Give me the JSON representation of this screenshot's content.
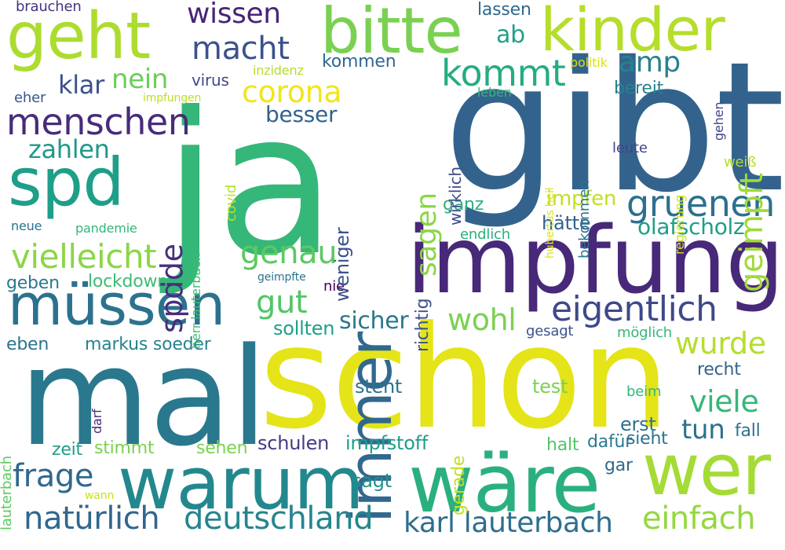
{
  "words": [
    {
      "id": "ja",
      "text": "ja",
      "color": "#35b779"
    },
    {
      "id": "gibt",
      "text": "gibt",
      "color": "#33638d"
    },
    {
      "id": "mal",
      "text": "mal",
      "color": "#2a788e"
    },
    {
      "id": "schon",
      "text": "schon",
      "color": "#e4e419"
    },
    {
      "id": "impfung",
      "text": "impfung",
      "color": "#482878"
    },
    {
      "id": "wäre",
      "text": "wäre",
      "color": "#2ab07f"
    },
    {
      "id": "warum",
      "text": "warum",
      "color": "#23888e"
    },
    {
      "id": "wer",
      "text": "wer",
      "color": "#a5db36"
    },
    {
      "id": "immer",
      "text": "immer",
      "color": "#31688e"
    },
    {
      "id": "kinder",
      "text": "kinder",
      "color": "#b5de2b"
    },
    {
      "id": "bitte",
      "text": "bitte",
      "color": "#7ad151"
    },
    {
      "id": "geht",
      "text": "geht",
      "color": "#addc30"
    },
    {
      "id": "spd",
      "text": "spd",
      "color": "#1f9e89"
    },
    {
      "id": "müssen",
      "text": "müssen",
      "color": "#2c728e"
    },
    {
      "id": "menschen",
      "text": "menschen",
      "color": "#472c7a"
    },
    {
      "id": "gruenen",
      "text": "gruenen",
      "color": "#2d708e"
    },
    {
      "id": "eigentlich",
      "text": "eigentlich",
      "color": "#3e4989"
    },
    {
      "id": "deutschland",
      "text": "deutschland",
      "color": "#25858e"
    },
    {
      "id": "natürlich",
      "text": "natürlich",
      "color": "#30678d"
    },
    {
      "id": "karl_lauterbach",
      "text": "karl lauterbach",
      "color": "#2e6e8e"
    },
    {
      "id": "einfach",
      "text": "einfach",
      "color": "#95d840"
    },
    {
      "id": "vielleicht",
      "text": "vielleicht",
      "color": "#8bd646"
    },
    {
      "id": "genau",
      "text": "genau",
      "color": "#5ec962"
    },
    {
      "id": "corona",
      "text": "corona",
      "color": "#f1e51d"
    },
    {
      "id": "kommt",
      "text": "kommt",
      "color": "#25ac82"
    },
    {
      "id": "geimpft",
      "text": "geimpft",
      "color": "#a0da39"
    },
    {
      "id": "frage",
      "text": "frage",
      "color": "#31688e"
    },
    {
      "id": "macht",
      "text": "macht",
      "color": "#3b528b"
    },
    {
      "id": "wissen",
      "text": "wissen",
      "color": "#482475"
    },
    {
      "id": "sagen",
      "text": "sagen",
      "color": "#8bd646"
    },
    {
      "id": "spdde",
      "text": "spdde",
      "color": "#472f7d"
    },
    {
      "id": "wurde",
      "text": "wurde",
      "color": "#b5de2b"
    },
    {
      "id": "viele",
      "text": "viele",
      "color": "#35b779"
    },
    {
      "id": "gut",
      "text": "gut",
      "color": "#52c569"
    },
    {
      "id": "sicher",
      "text": "sicher",
      "color": "#2a788e"
    },
    {
      "id": "wohl",
      "text": "wohl",
      "color": "#7ad151"
    },
    {
      "id": "amp",
      "text": "amp",
      "color": "#26828e"
    },
    {
      "id": "nein",
      "text": "nein",
      "color": "#6ccd5a"
    },
    {
      "id": "zahlen",
      "text": "zahlen",
      "color": "#1f988b"
    },
    {
      "id": "klar",
      "text": "klar",
      "color": "#3b528b"
    },
    {
      "id": "tun",
      "text": "tun",
      "color": "#2c728e"
    },
    {
      "id": "olafscholz",
      "text": "olafscholz",
      "color": "#1f9e89"
    },
    {
      "id": "ab",
      "text": "ab",
      "color": "#1fa188"
    },
    {
      "id": "besser",
      "text": "besser",
      "color": "#33638d"
    },
    {
      "id": "immer_sagen_fill",
      "text": "",
      "color": "#ffffff"
    },
    {
      "id": "impfen",
      "text": "impfen",
      "color": "#c2df23"
    },
    {
      "id": "hätte",
      "text": "hätte",
      "color": "#33638d"
    },
    {
      "id": "sollten",
      "text": "sollten",
      "color": "#1f9e89"
    },
    {
      "id": "markus_soeder",
      "text": "markus soeder",
      "color": "#26828e"
    },
    {
      "id": "eben",
      "text": "eben",
      "color": "#2c728e"
    },
    {
      "id": "lockdown",
      "text": "lockdown",
      "color": "#3dbc74"
    },
    {
      "id": "geben",
      "text": "geben",
      "color": "#2a788e"
    },
    {
      "id": "steht",
      "text": "steht",
      "color": "#2c728e"
    },
    {
      "id": "test",
      "text": "test",
      "color": "#7ad151"
    },
    {
      "id": "erst",
      "text": "erst",
      "color": "#2c728e"
    },
    {
      "id": "fall",
      "text": "fall",
      "color": "#2c728e"
    },
    {
      "id": "schulen",
      "text": "schulen",
      "color": "#443a83"
    },
    {
      "id": "impfstoff",
      "text": "impfstoff",
      "color": "#1f9e89"
    },
    {
      "id": "halt",
      "text": "halt",
      "color": "#52c569"
    },
    {
      "id": "dafür",
      "text": "dafür",
      "color": "#2a788e"
    },
    {
      "id": "sieht",
      "text": "sieht",
      "color": "#2c728e"
    },
    {
      "id": "zeit",
      "text": "zeit",
      "color": "#1f9e89"
    },
    {
      "id": "stimmt",
      "text": "stimmt",
      "color": "#7ad151"
    },
    {
      "id": "sehen",
      "text": "sehen",
      "color": "#7ad151"
    },
    {
      "id": "sagt",
      "text": "sagt",
      "color": "#21918c"
    },
    {
      "id": "gar",
      "text": "gar",
      "color": "#31688e"
    },
    {
      "id": "wann",
      "text": "wann",
      "color": "#c8e020"
    },
    {
      "id": "recht",
      "text": "recht",
      "color": "#33638d"
    },
    {
      "id": "beim",
      "text": "beim",
      "color": "#35b779"
    },
    {
      "id": "ganz",
      "text": "ganz",
      "color": "#2ab07f"
    },
    {
      "id": "endlich",
      "text": "endlich",
      "color": "#2ab07f"
    },
    {
      "id": "gesagt",
      "text": "gesagt",
      "color": "#3b528b"
    },
    {
      "id": "möglich",
      "text": "möglich",
      "color": "#35b779"
    },
    {
      "id": "nie",
      "text": "nie",
      "color": "#440154"
    },
    {
      "id": "geimpfte",
      "text": "geimpfte",
      "color": "#2c728e"
    },
    {
      "id": "pandemie",
      "text": "pandemie",
      "color": "#35b779"
    },
    {
      "id": "neue",
      "text": "neue",
      "color": "#2c728e"
    },
    {
      "id": "brauchen",
      "text": "brauchen",
      "color": "#46337e"
    },
    {
      "id": "eher",
      "text": "eher",
      "color": "#39568c"
    },
    {
      "id": "impfungen",
      "text": "impfungen",
      "color": "#bade28"
    },
    {
      "id": "virus",
      "text": "virus",
      "color": "#3e4989"
    },
    {
      "id": "inzidenz",
      "text": "inzidenz",
      "color": "#b5de2b"
    },
    {
      "id": "kommen",
      "text": "kommen",
      "color": "#31688e"
    },
    {
      "id": "lassen",
      "text": "lassen",
      "color": "#31688e"
    },
    {
      "id": "politik",
      "text": "politik",
      "color": "#d8e219"
    },
    {
      "id": "leben",
      "text": "leben",
      "color": "#35b779"
    },
    {
      "id": "bereit",
      "text": "bereit",
      "color": "#26828e"
    },
    {
      "id": "leute",
      "text": "leute",
      "color": "#414487"
    },
    {
      "id": "weiß",
      "text": "weiß",
      "color": "#b5de2b"
    },
    {
      "id": "gehen",
      "text": "gehen",
      "color": "#414487"
    },
    {
      "id": "regierung",
      "text": "regierung",
      "color": "#d2e21b"
    },
    {
      "id": "hubertus_heil",
      "text": "hubertus heil",
      "color": "#dde318"
    },
    {
      "id": "bekommen",
      "text": "bekommen",
      "color": "#2a788e"
    },
    {
      "id": "wirklich",
      "text": "wirklich",
      "color": "#3e4989"
    },
    {
      "id": "richtig",
      "text": "richtig",
      "color": "#3b528b"
    },
    {
      "id": "weniger",
      "text": "weniger",
      "color": "#3b528b"
    },
    {
      "id": "covid",
      "text": "covid",
      "color": "#b5de2b"
    },
    {
      "id": "herr_lauterbach",
      "text": "herr lauterbach",
      "color": "#3dbc74"
    },
    {
      "id": "lauterbach",
      "text": "lauterbach",
      "color": "#5ec962"
    },
    {
      "id": "darf",
      "text": "darf",
      "color": "#472c7a"
    },
    {
      "id": "gerade",
      "text": "gerade",
      "color": "#c2df23"
    }
  ]
}
